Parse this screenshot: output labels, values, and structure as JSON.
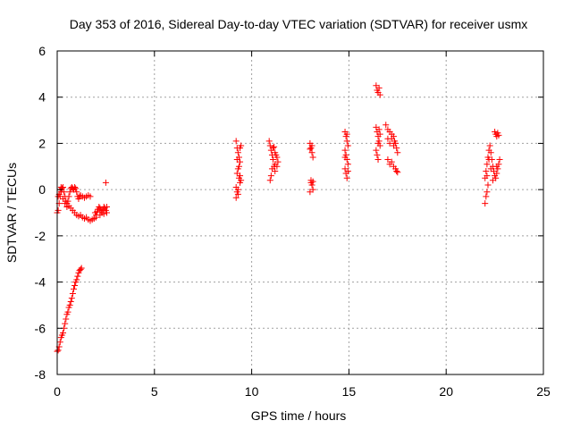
{
  "chart_data": {
    "type": "scatter",
    "title": "Day 353 of 2016, Sidereal Day-to-day VTEC variation (SDTVAR) for receiver usmx",
    "xlabel": "GPS time / hours",
    "ylabel": "SDTVAR / TECUs",
    "xlim": [
      0,
      25
    ],
    "ylim": [
      -8,
      6
    ],
    "xticks": [
      0,
      5,
      10,
      15,
      20,
      25
    ],
    "yticks": [
      -8,
      -6,
      -4,
      -2,
      0,
      2,
      4,
      6
    ],
    "grid": true,
    "marker": "+",
    "color": "#ff0000",
    "series": [
      {
        "points": [
          [
            0.0,
            -1.0
          ],
          [
            0.05,
            -0.9
          ],
          [
            0.1,
            -0.6
          ],
          [
            0.15,
            -0.3
          ],
          [
            0.2,
            -0.1
          ],
          [
            0.25,
            0.05
          ],
          [
            0.3,
            0.1
          ],
          [
            0.35,
            -0.1
          ],
          [
            0.4,
            -0.3
          ],
          [
            0.45,
            -0.5
          ],
          [
            0.5,
            -0.6
          ],
          [
            0.55,
            -0.5
          ],
          [
            0.6,
            -0.3
          ],
          [
            0.65,
            -0.1
          ],
          [
            0.7,
            0.05
          ],
          [
            0.75,
            0.1
          ],
          [
            0.8,
            0.05
          ],
          [
            0.85,
            0.0
          ],
          [
            0.9,
            0.1
          ],
          [
            0.95,
            0.05
          ],
          [
            1.0,
            -0.1
          ],
          [
            1.05,
            -0.3
          ],
          [
            1.1,
            -0.4
          ],
          [
            1.15,
            -0.3
          ],
          [
            1.2,
            -0.25
          ],
          [
            1.3,
            -0.3
          ],
          [
            1.4,
            -0.35
          ],
          [
            1.5,
            -0.3
          ],
          [
            1.6,
            -0.25
          ],
          [
            1.7,
            -0.3
          ],
          [
            0.05,
            -0.3
          ],
          [
            0.1,
            -0.2
          ],
          [
            0.15,
            0.0
          ],
          [
            0.2,
            0.1
          ],
          [
            0.3,
            -0.4
          ],
          [
            0.4,
            -0.6
          ],
          [
            0.5,
            -0.75
          ],
          [
            0.6,
            -0.7
          ],
          [
            0.7,
            -0.8
          ],
          [
            0.8,
            -0.9
          ],
          [
            0.9,
            -1.0
          ],
          [
            1.0,
            -1.1
          ],
          [
            1.1,
            -1.15
          ],
          [
            1.2,
            -1.1
          ],
          [
            1.3,
            -1.2
          ],
          [
            1.4,
            -1.25
          ],
          [
            1.5,
            -1.2
          ],
          [
            1.6,
            -1.3
          ],
          [
            1.7,
            -1.35
          ],
          [
            1.8,
            -1.3
          ],
          [
            1.9,
            -1.25
          ],
          [
            2.0,
            -1.1
          ],
          [
            2.05,
            -0.95
          ],
          [
            2.1,
            -0.85
          ],
          [
            2.15,
            -0.75
          ],
          [
            2.2,
            -0.8
          ],
          [
            2.25,
            -0.9
          ],
          [
            2.3,
            -1.0
          ],
          [
            2.35,
            -0.85
          ],
          [
            2.4,
            -0.75
          ],
          [
            2.45,
            -0.8
          ],
          [
            2.5,
            -0.9
          ],
          [
            2.55,
            -1.0
          ],
          [
            2.0,
            -1.2
          ],
          [
            1.95,
            -1.0
          ],
          [
            2.2,
            -1.1
          ],
          [
            2.4,
            -1.05
          ],
          [
            2.55,
            -0.75
          ],
          [
            2.5,
            0.3
          ],
          [
            0.0,
            -7.0
          ],
          [
            0.05,
            -6.95
          ],
          [
            0.1,
            -6.8
          ],
          [
            0.15,
            -6.6
          ],
          [
            0.2,
            -6.4
          ],
          [
            0.25,
            -6.3
          ],
          [
            0.3,
            -6.2
          ],
          [
            0.35,
            -6.0
          ],
          [
            0.4,
            -5.8
          ],
          [
            0.45,
            -5.6
          ],
          [
            0.5,
            -5.4
          ],
          [
            0.55,
            -5.3
          ],
          [
            0.6,
            -5.1
          ],
          [
            0.65,
            -5.0
          ],
          [
            0.7,
            -4.85
          ],
          [
            0.75,
            -4.7
          ],
          [
            0.8,
            -4.5
          ],
          [
            0.85,
            -4.3
          ],
          [
            0.9,
            -4.15
          ],
          [
            0.95,
            -4.0
          ],
          [
            1.0,
            -3.9
          ],
          [
            1.05,
            -3.75
          ],
          [
            1.1,
            -3.6
          ],
          [
            1.15,
            -3.5
          ],
          [
            1.2,
            -3.45
          ],
          [
            1.25,
            -3.4
          ],
          [
            9.2,
            2.1
          ],
          [
            9.25,
            1.8
          ],
          [
            9.3,
            1.6
          ],
          [
            9.35,
            1.4
          ],
          [
            9.4,
            1.2
          ],
          [
            9.3,
            0.9
          ],
          [
            9.25,
            0.7
          ],
          [
            9.35,
            0.5
          ],
          [
            9.4,
            0.3
          ],
          [
            9.2,
            0.1
          ],
          [
            9.25,
            -0.1
          ],
          [
            9.2,
            -0.35
          ],
          [
            9.3,
            -0.2
          ],
          [
            9.4,
            1.8
          ],
          [
            9.45,
            1.9
          ],
          [
            9.35,
            1.0
          ],
          [
            9.4,
            0.6
          ],
          [
            9.3,
            0.0
          ],
          [
            9.45,
            0.4
          ],
          [
            9.25,
            1.3
          ],
          [
            10.9,
            2.1
          ],
          [
            10.95,
            1.9
          ],
          [
            11.0,
            1.7
          ],
          [
            11.05,
            1.5
          ],
          [
            11.1,
            1.3
          ],
          [
            11.15,
            1.0
          ],
          [
            11.2,
            0.8
          ],
          [
            11.0,
            0.6
          ],
          [
            10.95,
            0.4
          ],
          [
            11.05,
            0.9
          ],
          [
            11.1,
            1.8
          ],
          [
            11.2,
            1.6
          ],
          [
            11.3,
            1.4
          ],
          [
            11.35,
            1.2
          ],
          [
            11.3,
            1.0
          ],
          [
            11.25,
            1.5
          ],
          [
            11.15,
            1.85
          ],
          [
            11.2,
            1.1
          ],
          [
            13.0,
            2.0
          ],
          [
            13.05,
            1.8
          ],
          [
            13.1,
            1.6
          ],
          [
            13.15,
            1.4
          ],
          [
            13.0,
            1.75
          ],
          [
            13.1,
            1.9
          ],
          [
            13.05,
            0.4
          ],
          [
            13.1,
            0.2
          ],
          [
            13.15,
            0.0
          ],
          [
            13.0,
            -0.1
          ],
          [
            13.05,
            0.3
          ],
          [
            13.15,
            0.35
          ],
          [
            14.8,
            2.5
          ],
          [
            14.85,
            2.3
          ],
          [
            14.9,
            2.1
          ],
          [
            14.95,
            1.9
          ],
          [
            14.8,
            1.7
          ],
          [
            14.85,
            1.5
          ],
          [
            14.9,
            1.3
          ],
          [
            14.95,
            1.1
          ],
          [
            14.8,
            0.9
          ],
          [
            14.85,
            0.7
          ],
          [
            14.9,
            0.5
          ],
          [
            14.95,
            0.8
          ],
          [
            14.8,
            1.4
          ],
          [
            14.9,
            2.4
          ],
          [
            16.4,
            4.5
          ],
          [
            16.45,
            4.3
          ],
          [
            16.5,
            4.2
          ],
          [
            16.55,
            4.4
          ],
          [
            16.6,
            4.1
          ],
          [
            16.4,
            2.7
          ],
          [
            16.45,
            2.5
          ],
          [
            16.5,
            2.3
          ],
          [
            16.55,
            2.1
          ],
          [
            16.6,
            1.9
          ],
          [
            16.4,
            1.7
          ],
          [
            16.45,
            1.5
          ],
          [
            16.5,
            1.3
          ],
          [
            16.55,
            2.6
          ],
          [
            16.6,
            2.4
          ],
          [
            16.5,
            2.0
          ],
          [
            16.9,
            2.8
          ],
          [
            17.0,
            2.6
          ],
          [
            17.1,
            2.5
          ],
          [
            17.2,
            2.4
          ],
          [
            17.3,
            2.3
          ],
          [
            17.35,
            2.1
          ],
          [
            17.4,
            2.0
          ],
          [
            17.45,
            1.8
          ],
          [
            17.5,
            1.6
          ],
          [
            17.0,
            2.2
          ],
          [
            17.1,
            2.0
          ],
          [
            17.2,
            1.2
          ],
          [
            17.3,
            1.0
          ],
          [
            17.4,
            0.9
          ],
          [
            17.45,
            0.8
          ],
          [
            17.5,
            0.75
          ],
          [
            17.1,
            1.1
          ],
          [
            17.0,
            1.3
          ],
          [
            17.2,
            2.2
          ],
          [
            17.3,
            1.9
          ],
          [
            22.0,
            -0.6
          ],
          [
            22.05,
            -0.3
          ],
          [
            22.1,
            -0.1
          ],
          [
            22.15,
            0.2
          ],
          [
            22.0,
            0.5
          ],
          [
            22.05,
            0.8
          ],
          [
            22.1,
            1.1
          ],
          [
            22.15,
            1.4
          ],
          [
            22.2,
            1.7
          ],
          [
            22.25,
            1.9
          ],
          [
            22.3,
            1.6
          ],
          [
            22.35,
            1.3
          ],
          [
            22.4,
            1.0
          ],
          [
            22.45,
            0.8
          ],
          [
            22.5,
            0.6
          ],
          [
            22.55,
            0.5
          ],
          [
            22.6,
            0.7
          ],
          [
            22.65,
            0.9
          ],
          [
            22.7,
            1.1
          ],
          [
            22.75,
            1.3
          ],
          [
            22.5,
            2.5
          ],
          [
            22.55,
            2.4
          ],
          [
            22.6,
            2.3
          ],
          [
            22.65,
            2.45
          ],
          [
            22.7,
            2.35
          ],
          [
            22.3,
            0.9
          ],
          [
            22.4,
            0.4
          ],
          [
            22.2,
            1.3
          ],
          [
            22.6,
            1.0
          ],
          [
            22.1,
            0.6
          ]
        ]
      }
    ]
  }
}
